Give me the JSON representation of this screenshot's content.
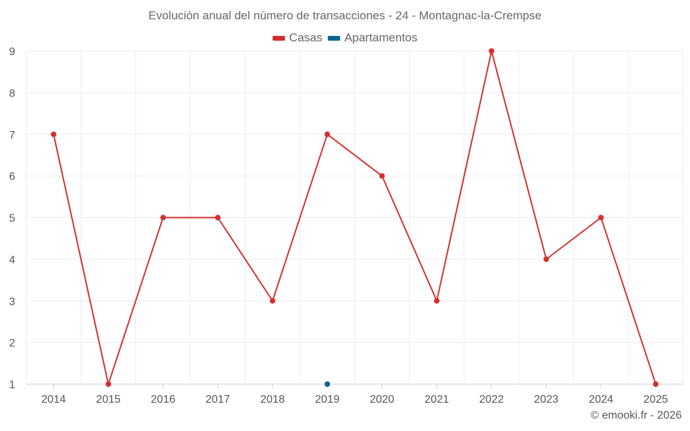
{
  "chart_data": {
    "type": "line",
    "title": "Evolución anual del número de transacciones - 24 - Montagnac-la-Crempse",
    "categories": [
      "2014",
      "2015",
      "2016",
      "2017",
      "2018",
      "2019",
      "2020",
      "2021",
      "2022",
      "2023",
      "2024",
      "2025"
    ],
    "series": [
      {
        "name": "Casas",
        "color": "#d32f2f",
        "values": [
          7,
          1,
          5,
          5,
          3,
          7,
          6,
          3,
          9,
          4,
          5,
          1
        ]
      },
      {
        "name": "Apartamentos",
        "color": "#0d6493",
        "values": [
          null,
          null,
          null,
          null,
          null,
          1,
          null,
          null,
          null,
          null,
          null,
          null
        ]
      }
    ],
    "yticks": [
      "1",
      "2",
      "3",
      "4",
      "5",
      "6",
      "7",
      "8",
      "9"
    ],
    "ylim": [
      1,
      9
    ],
    "xlabel": "",
    "ylabel": "",
    "legend_position": "top-center",
    "grid": true
  },
  "credit": "© emooki.fr - 2026"
}
